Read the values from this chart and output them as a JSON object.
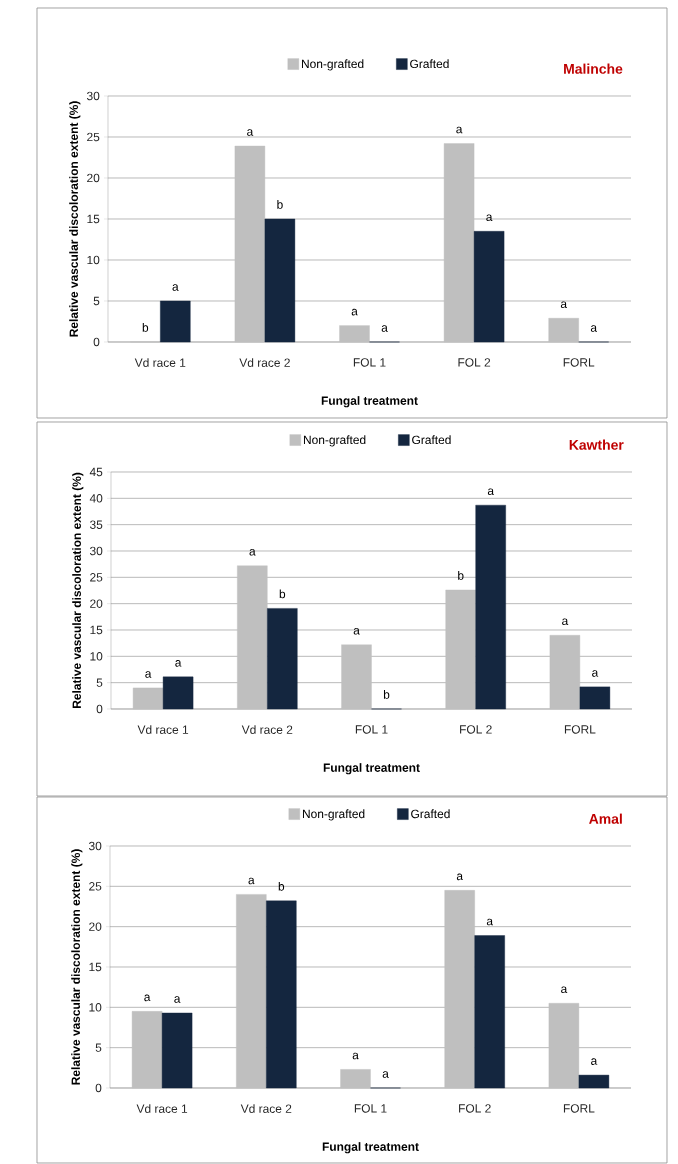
{
  "chart_data": [
    {
      "type": "bar",
      "title": "Malinche",
      "xlabel": "Fungal treatment",
      "ylabel": "Relative vascular discoloration extent (%)",
      "categories": [
        "Vd race 1",
        "Vd race 2",
        "FOL 1",
        "FOL 2",
        "FORL"
      ],
      "ylim": [
        0,
        30
      ],
      "yticks": [
        0,
        5,
        10,
        15,
        20,
        25,
        30
      ],
      "grid": "y",
      "legend": "top",
      "series": [
        {
          "name": "Non-grafted",
          "color": "#bfbfbf",
          "values": [
            0,
            23.9,
            2,
            24.2,
            2.9
          ],
          "value_labels": [
            "b",
            "a",
            "a",
            "a",
            "a"
          ]
        },
        {
          "name": "Grafted",
          "color": "#14263f",
          "values": [
            5,
            15,
            0,
            13.5,
            0
          ],
          "value_labels": [
            "a",
            "b",
            "a",
            "a",
            "a"
          ]
        }
      ]
    },
    {
      "type": "bar",
      "title": "Kawther",
      "xlabel": "Fungal treatment",
      "ylabel": "Relative vascular discoloration extent (%)",
      "categories": [
        "Vd race 1",
        "Vd race 2",
        "FOL 1",
        "FOL 2",
        "FORL"
      ],
      "ylim": [
        0,
        45
      ],
      "yticks": [
        0,
        5,
        10,
        15,
        20,
        25,
        30,
        35,
        40,
        45
      ],
      "grid": "y",
      "legend": "top",
      "series": [
        {
          "name": "Non-grafted",
          "color": "#bfbfbf",
          "values": [
            4,
            27.2,
            12.2,
            22.6,
            14
          ],
          "value_labels": [
            "a",
            "a",
            "a",
            "b",
            "a"
          ]
        },
        {
          "name": "Grafted",
          "color": "#14263f",
          "values": [
            6.1,
            19.1,
            0,
            38.7,
            4.2
          ],
          "value_labels": [
            "a",
            "b",
            "b",
            "a",
            "a"
          ]
        }
      ]
    },
    {
      "type": "bar",
      "title": "Amal",
      "xlabel": "Fungal treatment",
      "ylabel": "Relative vascular discoloration extent (%)",
      "categories": [
        "Vd race 1",
        "Vd race 2",
        "FOL 1",
        "FOL 2",
        "FORL"
      ],
      "ylim": [
        0,
        30
      ],
      "yticks": [
        0,
        5,
        10,
        15,
        20,
        25,
        30
      ],
      "grid": "y",
      "legend": "top",
      "series": [
        {
          "name": "Non-grafted",
          "color": "#bfbfbf",
          "values": [
            9.5,
            24,
            2.3,
            24.5,
            10.5
          ],
          "value_labels": [
            "a",
            "a",
            "a",
            "a",
            "a"
          ]
        },
        {
          "name": "Grafted",
          "color": "#14263f",
          "values": [
            9.3,
            23.2,
            0,
            18.9,
            1.6
          ],
          "value_labels": [
            "a",
            "b",
            "a",
            "a",
            "a"
          ]
        }
      ]
    }
  ]
}
